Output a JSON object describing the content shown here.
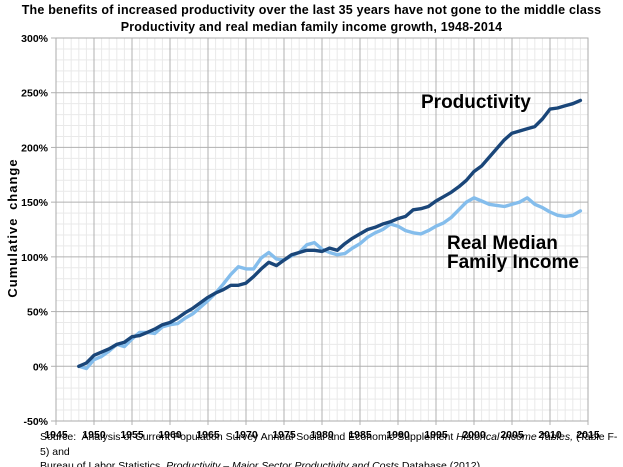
{
  "title": "The benefits of increased productivity over the last 35 years have not gone to the middle class",
  "subtitle": "Productivity and real median family income growth, 1948-2014",
  "chart_data": {
    "type": "line",
    "xlabel": "",
    "ylabel": "Cumulative change",
    "xlim": [
      1945,
      2015
    ],
    "ylim": [
      -50,
      300
    ],
    "x_ticks": [
      1945,
      1950,
      1955,
      1960,
      1965,
      1970,
      1975,
      1980,
      1985,
      1990,
      1995,
      2000,
      2005,
      2010,
      2015
    ],
    "y_ticks": [
      -50,
      0,
      50,
      100,
      150,
      200,
      250,
      300
    ],
    "y_tick_suffix": "%",
    "grid": {
      "minor_x_step_years": 1,
      "minor_y_step_pct": 10,
      "major_x_step_years": 5,
      "major_y_step_pct": 50
    },
    "legend_position": "none",
    "x": [
      1948,
      1949,
      1950,
      1951,
      1952,
      1953,
      1954,
      1955,
      1956,
      1957,
      1958,
      1959,
      1960,
      1961,
      1962,
      1963,
      1964,
      1965,
      1966,
      1967,
      1968,
      1969,
      1970,
      1971,
      1972,
      1973,
      1974,
      1975,
      1976,
      1977,
      1978,
      1979,
      1980,
      1981,
      1982,
      1983,
      1984,
      1985,
      1986,
      1987,
      1988,
      1989,
      1990,
      1991,
      1992,
      1993,
      1994,
      1995,
      1996,
      1997,
      1998,
      1999,
      2000,
      2001,
      2002,
      2003,
      2004,
      2005,
      2006,
      2007,
      2008,
      2009,
      2010,
      2011,
      2012,
      2013,
      2014
    ],
    "series": [
      {
        "name": "Real Median Family Income",
        "color": "#84BDEC",
        "values": [
          0,
          -2,
          6,
          9,
          14,
          20,
          18,
          25,
          31,
          31,
          30,
          36,
          38,
          39,
          44,
          48,
          54,
          60,
          67,
          75,
          84,
          91,
          89,
          89,
          99,
          104,
          98,
          97,
          101,
          104,
          111,
          113,
          107,
          104,
          102,
          103,
          108,
          112,
          118,
          122,
          125,
          130,
          128,
          124,
          122,
          121,
          124,
          128,
          131,
          136,
          143,
          150,
          154,
          151,
          148,
          147,
          146,
          148,
          150,
          154,
          148,
          145,
          141,
          138,
          137,
          138,
          142
        ]
      },
      {
        "name": "Productivity",
        "color": "#1A4679",
        "values": [
          0,
          3,
          10,
          13,
          16,
          20,
          22,
          27,
          28,
          31,
          34,
          38,
          40,
          44,
          49,
          53,
          58,
          63,
          67,
          70,
          74,
          74,
          76,
          82,
          89,
          95,
          92,
          97,
          102,
          104,
          106,
          106,
          105,
          108,
          106,
          112,
          117,
          121,
          125,
          127,
          130,
          132,
          135,
          137,
          143,
          144,
          146,
          151,
          155,
          159,
          164,
          170,
          178,
          183,
          191,
          199,
          207,
          213,
          215,
          217,
          219,
          226,
          235,
          236,
          238,
          240,
          243
        ]
      }
    ],
    "annotations": [
      {
        "name": "productivity-label",
        "text": "Productivity",
        "x": 421,
        "y": 93
      },
      {
        "name": "income-label",
        "text": "Real Median\nFamily Income",
        "x": 447,
        "y": 234
      }
    ]
  },
  "colors": {
    "grid_minor": "#E9E9E9",
    "grid_major": "#B0B0B0",
    "plot_border": "#ABABAB",
    "text": "#000000"
  },
  "source": {
    "line1_parts": [
      {
        "text": "Source:  Analysis of Current Population Survey Annual Social and Economic Supplement ",
        "italic": false
      },
      {
        "text": "Historical Income Tables,",
        "italic": true
      },
      {
        "text": " (Table F-5) and",
        "italic": false
      }
    ],
    "line2_parts": [
      {
        "text": "Bureau of Labor Statistics, ",
        "italic": false
      },
      {
        "text": "Productivity – Major Sector Productivity and Costs ",
        "italic": true
      },
      {
        "text": "Database (2012)",
        "italic": false
      }
    ]
  }
}
